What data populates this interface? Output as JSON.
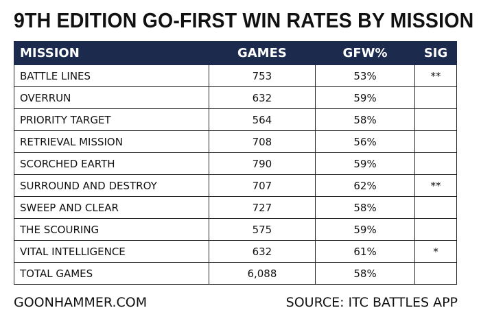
{
  "header": {
    "title": "9TH EDITION GO-FIRST WIN RATES BY MISSION"
  },
  "table": {
    "columns": [
      "MISSION",
      "GAMES",
      "GFW%",
      "SIG"
    ],
    "rows": [
      [
        "BATTLE LINES",
        "753",
        "53%",
        "**"
      ],
      [
        "OVERRUN",
        "632",
        "59%",
        ""
      ],
      [
        "PRIORITY TARGET",
        "564",
        "58%",
        ""
      ],
      [
        "RETRIEVAL MISSION",
        "708",
        "56%",
        ""
      ],
      [
        "SCORCHED EARTH",
        "790",
        "59%",
        ""
      ],
      [
        "SURROUND AND DESTROY",
        "707",
        "62%",
        "**"
      ],
      [
        "SWEEP AND CLEAR",
        "727",
        "58%",
        ""
      ],
      [
        "THE SCOURING",
        "575",
        "59%",
        ""
      ],
      [
        "VITAL INTELLIGENCE",
        "632",
        "61%",
        "*"
      ],
      [
        "TOTAL GAMES",
        "6,088",
        "58%",
        ""
      ]
    ]
  },
  "footer": {
    "left": "GOONHAMMER.COM",
    "right": "SOURCE: ITC BATTLES APP"
  }
}
